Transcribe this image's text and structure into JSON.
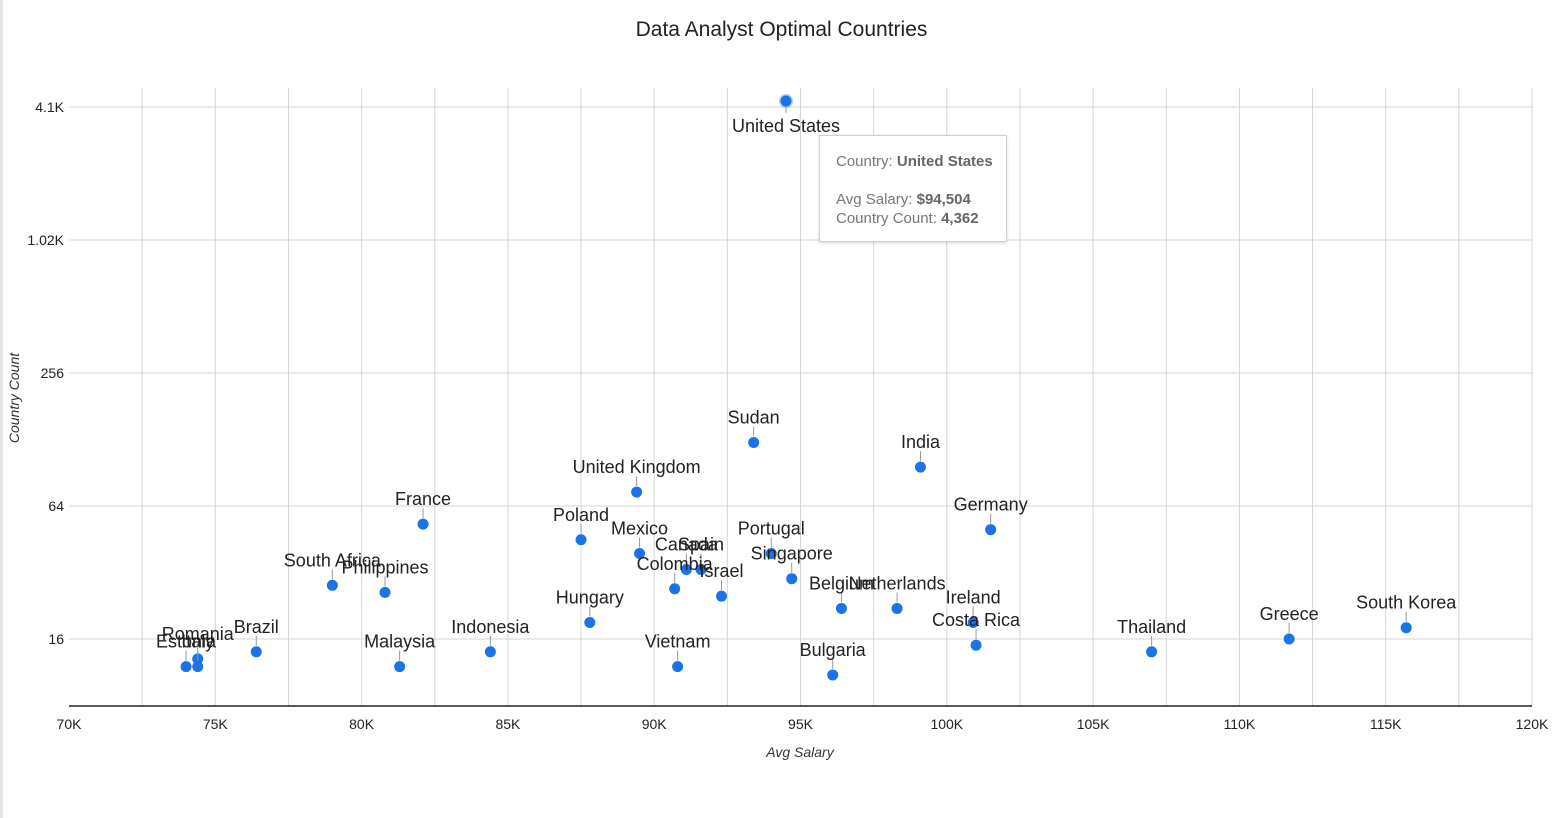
{
  "chart_data": {
    "type": "scatter",
    "title": "Data Analyst Optimal Countries",
    "xlabel": "Avg Salary",
    "ylabel": "Country Count",
    "xlim": [
      70000,
      120000
    ],
    "x_ticks": [
      "70K",
      "75K",
      "80K",
      "85K",
      "90K",
      "95K",
      "100K",
      "105K",
      "110K",
      "115K",
      "120K"
    ],
    "y_scale": "log2",
    "y_ticks": [
      "16",
      "64",
      "256",
      "1.02K",
      "4.1K"
    ],
    "grid": true,
    "marker_color": "#1a73e8",
    "points": [
      {
        "label": "United States",
        "x": 94504,
        "y": 4362
      },
      {
        "label": "Sudan",
        "x": 93400,
        "y": 124
      },
      {
        "label": "India",
        "x": 99100,
        "y": 96
      },
      {
        "label": "United Kingdom",
        "x": 89400,
        "y": 74
      },
      {
        "label": "France",
        "x": 82100,
        "y": 53
      },
      {
        "label": "Germany",
        "x": 101500,
        "y": 50
      },
      {
        "label": "Poland",
        "x": 87500,
        "y": 45
      },
      {
        "label": "Mexico",
        "x": 89500,
        "y": 39
      },
      {
        "label": "Portugal",
        "x": 94000,
        "y": 39
      },
      {
        "label": "Canada",
        "x": 91100,
        "y": 33
      },
      {
        "label": "Spain",
        "x": 91600,
        "y": 33
      },
      {
        "label": "Singapore",
        "x": 94700,
        "y": 30
      },
      {
        "label": "South Africa",
        "x": 79000,
        "y": 28
      },
      {
        "label": "Colombia",
        "x": 90700,
        "y": 27
      },
      {
        "label": "Philippines",
        "x": 80800,
        "y": 26
      },
      {
        "label": "Israel",
        "x": 92300,
        "y": 25
      },
      {
        "label": "Belgium",
        "x": 96400,
        "y": 22
      },
      {
        "label": "Netherlands",
        "x": 98300,
        "y": 22
      },
      {
        "label": "Hungary",
        "x": 87800,
        "y": 19
      },
      {
        "label": "Ireland",
        "x": 100900,
        "y": 19
      },
      {
        "label": "South Korea",
        "x": 115700,
        "y": 18
      },
      {
        "label": "Greece",
        "x": 111700,
        "y": 16
      },
      {
        "label": "Costa Rica",
        "x": 101000,
        "y": 15
      },
      {
        "label": "Brazil",
        "x": 76400,
        "y": 14
      },
      {
        "label": "Indonesia",
        "x": 84400,
        "y": 14
      },
      {
        "label": "Thailand",
        "x": 107000,
        "y": 14
      },
      {
        "label": "Romania",
        "x": 74400,
        "y": 13
      },
      {
        "label": "Estonia",
        "x": 74000,
        "y": 12
      },
      {
        "label": "Italy",
        "x": 74400,
        "y": 12
      },
      {
        "label": "Malaysia",
        "x": 81300,
        "y": 12
      },
      {
        "label": "Vietnam",
        "x": 90800,
        "y": 12
      },
      {
        "label": "Bulgaria",
        "x": 96100,
        "y": 11
      }
    ]
  },
  "tooltip": {
    "country_key": "Country:",
    "country_value": "United States",
    "salary_key": "Avg Salary:",
    "salary_value": "$94,504",
    "count_key": "Country Count:",
    "count_value": "4,362"
  }
}
